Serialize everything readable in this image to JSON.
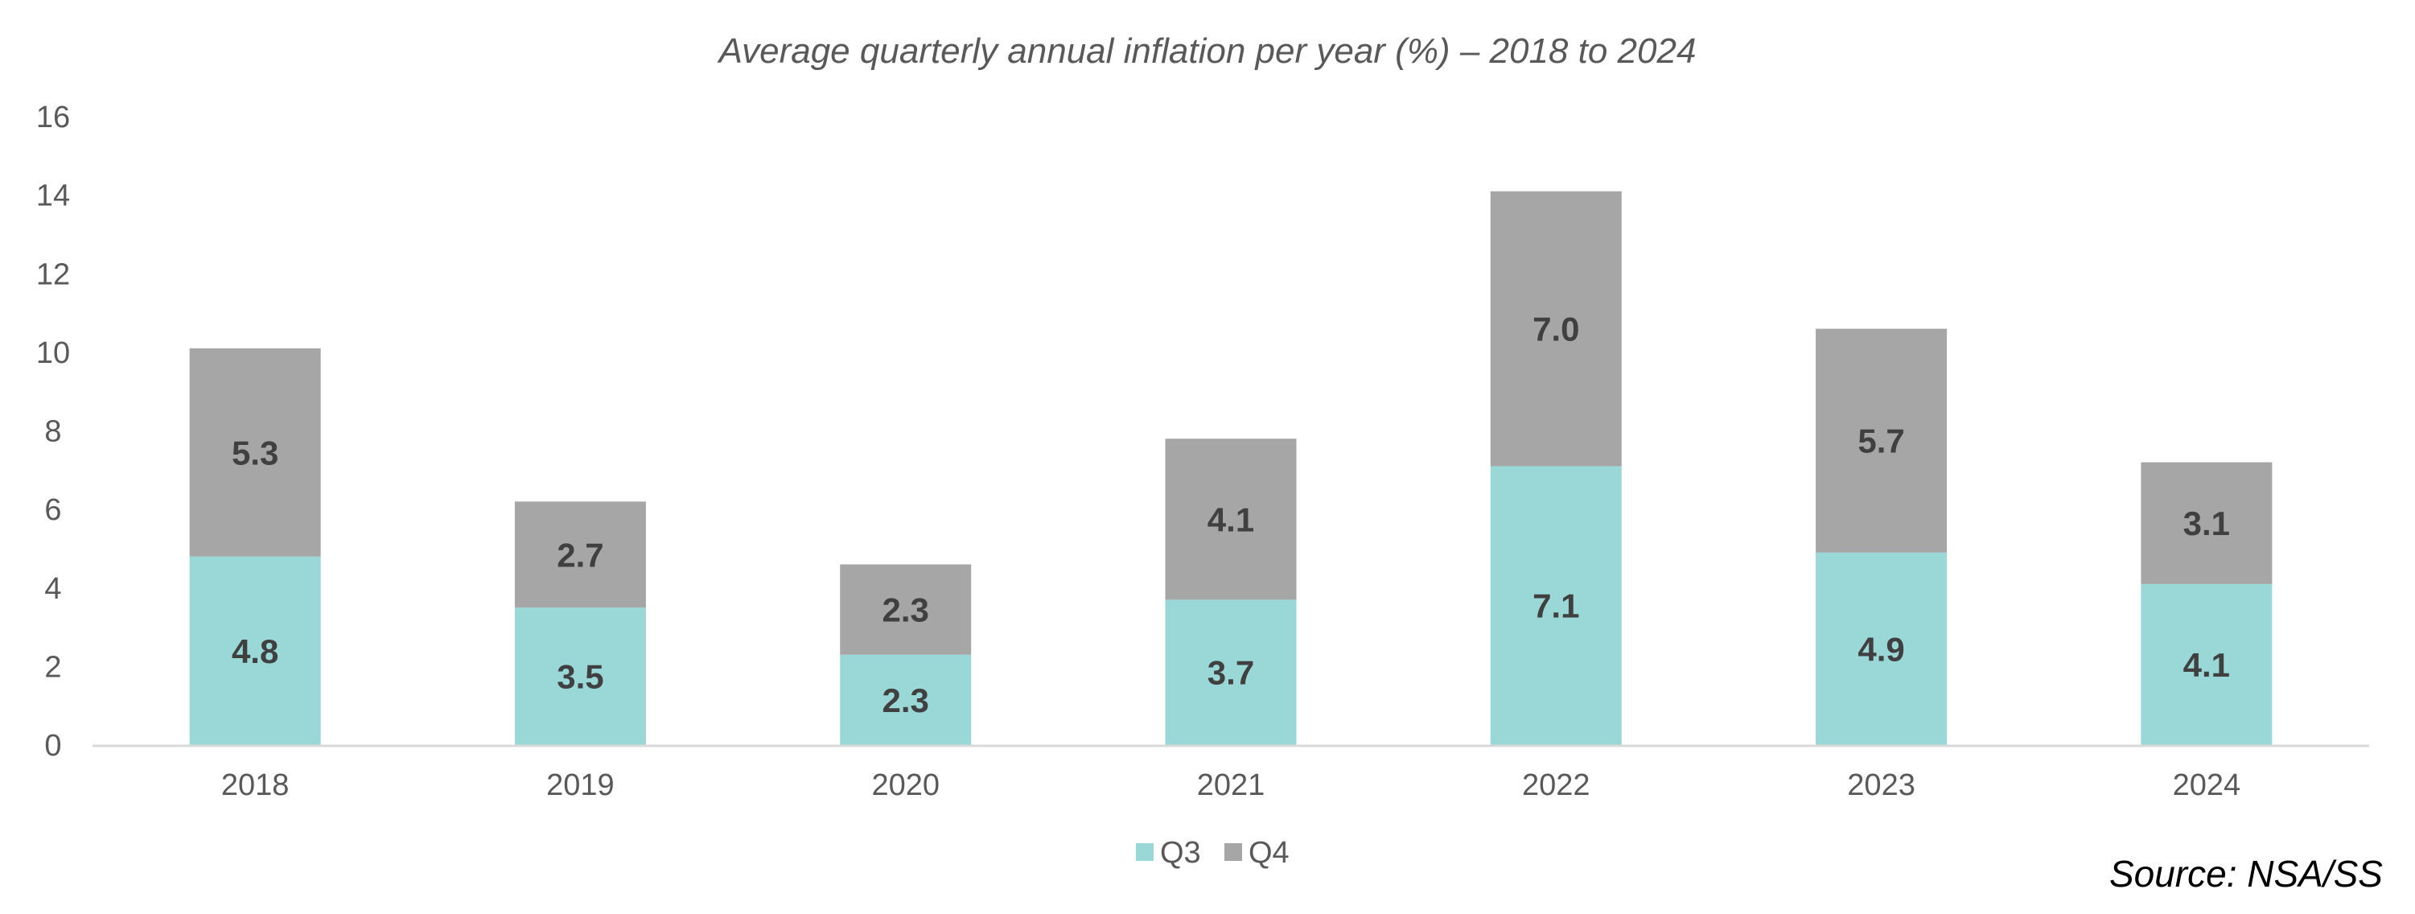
{
  "chart_data": {
    "type": "bar",
    "stacked": true,
    "title": "Average quarterly annual inflation per year (%) – 2018 to 2024",
    "categories": [
      "2018",
      "2019",
      "2020",
      "2021",
      "2022",
      "2023",
      "2024"
    ],
    "series": [
      {
        "name": "Q3",
        "values": [
          4.8,
          3.5,
          2.3,
          3.7,
          7.1,
          4.9,
          4.1
        ],
        "labels": [
          "4.8",
          "3.5",
          "2.3",
          "3.7",
          "7.1",
          "4.9",
          "4.1"
        ],
        "color": "#9AD8D8"
      },
      {
        "name": "Q4",
        "values": [
          5.3,
          2.7,
          2.3,
          4.1,
          7.0,
          5.7,
          3.1
        ],
        "labels": [
          "5.3",
          "2.7",
          "2.3",
          "4.1",
          "7.0",
          "5.7",
          "3.1"
        ],
        "color": "#A6A6A6"
      }
    ],
    "ylim": [
      0,
      16
    ],
    "yticks": [
      "0",
      "2",
      "4",
      "6",
      "8",
      "10",
      "12",
      "14",
      "16"
    ],
    "grid": false,
    "legend": "bottom-center",
    "source": "Source: NSA/SS"
  }
}
